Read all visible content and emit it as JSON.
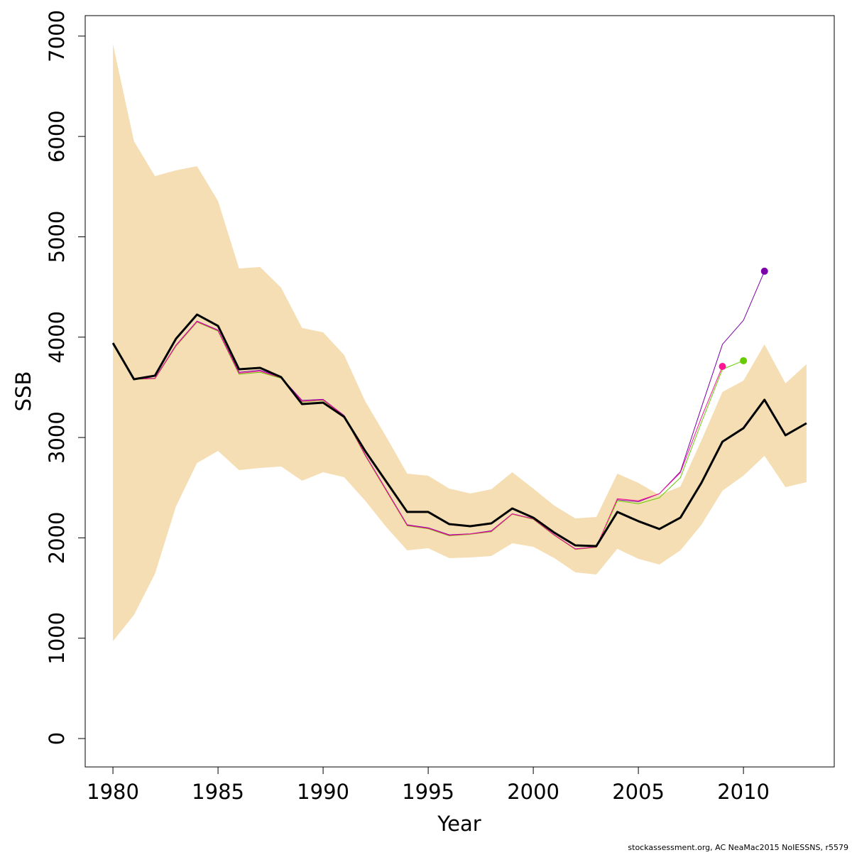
{
  "chart_data": {
    "type": "line",
    "xlabel": "Year",
    "ylabel": "SSB",
    "footnote": "stockassessment.org, AC  NeaMac2015  NoIESSNS, r5579",
    "x": [
      1980,
      1981,
      1982,
      1983,
      1984,
      1985,
      1986,
      1987,
      1988,
      1989,
      1990,
      1991,
      1992,
      1993,
      1994,
      1995,
      1996,
      1997,
      1998,
      1999,
      2000,
      2001,
      2002,
      2003,
      2004,
      2005,
      2006,
      2007,
      2008,
      2009,
      2010,
      2011,
      2012,
      2013
    ],
    "xlim": [
      1978.68,
      2014.32
    ],
    "xticks": [
      1980,
      1985,
      1990,
      1995,
      2000,
      2005,
      2010
    ],
    "ylim": [
      -283,
      7204
    ],
    "yticks": [
      0,
      1000,
      2000,
      3000,
      4000,
      5000,
      6000,
      7000
    ],
    "band": {
      "color": "#f5deb3",
      "upper": [
        6921,
        5952,
        5605,
        5662,
        5704,
        5357,
        4685,
        4699,
        4494,
        4091,
        4048,
        3822,
        3362,
        3008,
        2640,
        2619,
        2491,
        2442,
        2484,
        2654,
        2491,
        2321,
        2194,
        2208,
        2640,
        2548,
        2427,
        2512,
        2972,
        3454,
        3567,
        3928,
        3539,
        3730
      ],
      "lower": [
        970,
        1231,
        1642,
        2314,
        2746,
        2866,
        2675,
        2696,
        2711,
        2569,
        2654,
        2604,
        2371,
        2109,
        1875,
        1897,
        1798,
        1805,
        1819,
        1946,
        1911,
        1798,
        1656,
        1635,
        1890,
        1791,
        1734,
        1875,
        2130,
        2470,
        2619,
        2817,
        2505,
        2555
      ]
    },
    "series": [
      {
        "color": "#7b00a8",
        "width": 1,
        "endpoint": true,
        "values": [
          3930,
          3585,
          3590,
          3920,
          4160,
          4070,
          3650,
          3670,
          3600,
          3370,
          3380,
          3220,
          2830,
          2480,
          2130,
          2100,
          2030,
          2040,
          2070,
          2240,
          2190,
          2030,
          1890,
          1910,
          2380,
          2360,
          2440,
          2660,
          3300,
          3928,
          4168,
          4657,
          null,
          null
        ]
      },
      {
        "color": "#66cc00",
        "width": 1,
        "endpoint": true,
        "values": [
          3925,
          3580,
          3585,
          3910,
          4150,
          4060,
          3630,
          3650,
          3590,
          3355,
          3370,
          3210,
          2820,
          2470,
          2120,
          2090,
          2020,
          2035,
          2060,
          2235,
          2185,
          2025,
          1885,
          1905,
          2370,
          2340,
          2400,
          2600,
          3150,
          3680,
          3765,
          null,
          null,
          null
        ]
      },
      {
        "color": "#ff1493",
        "width": 1,
        "endpoint": true,
        "values": [
          3928,
          3582,
          3588,
          3915,
          4155,
          4065,
          3640,
          3660,
          3595,
          3360,
          3375,
          3215,
          2825,
          2475,
          2125,
          2095,
          2025,
          2038,
          2065,
          2238,
          2188,
          2028,
          1888,
          1908,
          2390,
          2370,
          2440,
          2650,
          3200,
          3708,
          null,
          null,
          null,
          null
        ]
      },
      {
        "color": "#000000",
        "width": 3,
        "endpoint": false,
        "values": [
          3942,
          3581,
          3616,
          3984,
          4225,
          4112,
          3680,
          3694,
          3602,
          3333,
          3347,
          3206,
          2866,
          2562,
          2258,
          2258,
          2137,
          2116,
          2144,
          2293,
          2201,
          2052,
          1925,
          1918,
          2258,
          2166,
          2088,
          2201,
          2548,
          2958,
          3093,
          3376,
          3022,
          3142
        ]
      }
    ]
  }
}
